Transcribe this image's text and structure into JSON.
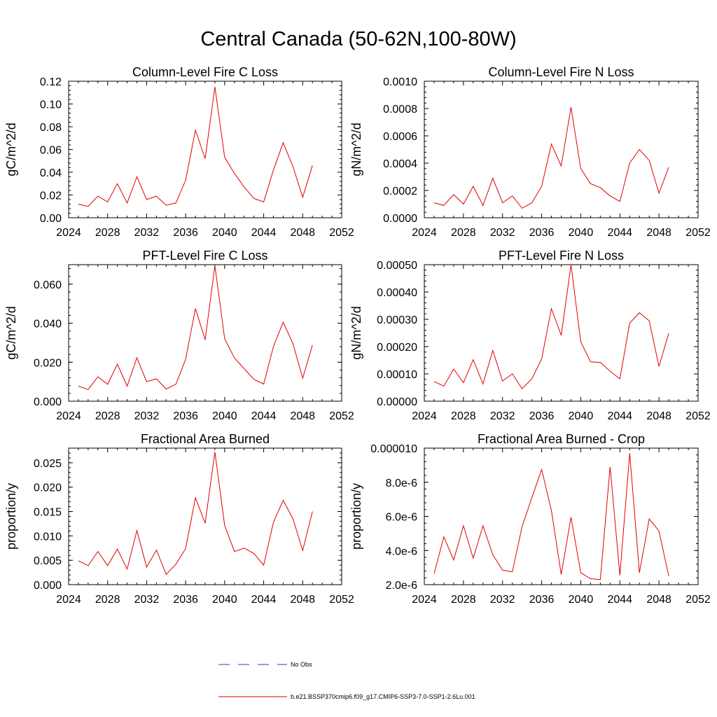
{
  "figure": {
    "title": "Central Canada (50-62N,100-80W)",
    "line_color": "#e00000",
    "obs_color": "#3a3ab0"
  },
  "legend": [
    {
      "label": "No Obs",
      "style": "dashed",
      "color": "#3a3ab0"
    },
    {
      "label": "b.e21.BSSP370cmip6.f09_g17.CMIP6-SSP3-7.0-SSP1-2.6Lu.001",
      "style": "solid",
      "color": "#e00000"
    }
  ],
  "chart_data": [
    {
      "type": "line",
      "title": "Column-Level Fire C Loss",
      "ylabel": "gC/m^2/d",
      "xlim": [
        2024,
        2052
      ],
      "xticks": [
        "2024",
        "2028",
        "2032",
        "2036",
        "2040",
        "2044",
        "2048",
        "2052"
      ],
      "ylim": [
        0,
        0.12
      ],
      "yticks": [
        "0.00",
        "0.02",
        "0.04",
        "0.06",
        "0.08",
        "0.10",
        "0.12"
      ],
      "x": [
        2025,
        2026,
        2027,
        2028,
        2029,
        2030,
        2031,
        2032,
        2033,
        2034,
        2035,
        2036,
        2037,
        2038,
        2039,
        2040,
        2041,
        2042,
        2043,
        2044,
        2045,
        2046,
        2047,
        2048,
        2049
      ],
      "values": [
        0.012,
        0.01,
        0.019,
        0.014,
        0.03,
        0.013,
        0.036,
        0.016,
        0.019,
        0.011,
        0.013,
        0.033,
        0.077,
        0.052,
        0.115,
        0.053,
        0.039,
        0.027,
        0.017,
        0.014,
        0.042,
        0.066,
        0.045,
        0.018,
        0.046
      ]
    },
    {
      "type": "line",
      "title": "Column-Level Fire N Loss",
      "ylabel": "gN/m^2/d",
      "xlim": [
        2024,
        2052
      ],
      "xticks": [
        "2024",
        "2028",
        "2032",
        "2036",
        "2040",
        "2044",
        "2048",
        "2052"
      ],
      "ylim": [
        0,
        0.001
      ],
      "yticks": [
        "0.0000",
        "0.0002",
        "0.0004",
        "0.0006",
        "0.0008",
        "0.0010"
      ],
      "x": [
        2025,
        2026,
        2027,
        2028,
        2029,
        2030,
        2031,
        2032,
        2033,
        2034,
        2035,
        2036,
        2037,
        2038,
        2039,
        2040,
        2041,
        2042,
        2043,
        2044,
        2045,
        2046,
        2047,
        2048,
        2049
      ],
      "values": [
        0.00011,
        9e-05,
        0.00017,
        0.0001,
        0.00023,
        9e-05,
        0.00029,
        0.00011,
        0.00016,
        7e-05,
        0.00011,
        0.00023,
        0.00054,
        0.00038,
        0.00081,
        0.00036,
        0.00025,
        0.00022,
        0.00016,
        0.00012,
        0.0004,
        0.0005,
        0.00042,
        0.00018,
        0.00037
      ]
    },
    {
      "type": "line",
      "title": "PFT-Level Fire C Loss",
      "ylabel": "gC/m^2/d",
      "xlim": [
        2024,
        2052
      ],
      "xticks": [
        "2024",
        "2028",
        "2032",
        "2036",
        "2040",
        "2044",
        "2048",
        "2052"
      ],
      "ylim": [
        0,
        0.07
      ],
      "yticks": [
        "0.000",
        "0.020",
        "0.040",
        "0.060"
      ],
      "ytick_values": [
        0,
        0.02,
        0.04,
        0.06
      ],
      "x": [
        2025,
        2026,
        2027,
        2028,
        2029,
        2030,
        2031,
        2032,
        2033,
        2034,
        2035,
        2036,
        2037,
        2038,
        2039,
        2040,
        2041,
        2042,
        2043,
        2044,
        2045,
        2046,
        2047,
        2048,
        2049
      ],
      "values": [
        0.0077,
        0.006,
        0.0125,
        0.0087,
        0.019,
        0.0077,
        0.0223,
        0.01,
        0.0115,
        0.0063,
        0.0087,
        0.0215,
        0.0475,
        0.0315,
        0.0695,
        0.032,
        0.0222,
        0.0167,
        0.0112,
        0.0088,
        0.028,
        0.0405,
        0.0295,
        0.0118,
        0.0288
      ]
    },
    {
      "type": "line",
      "title": "PFT-Level Fire N Loss",
      "ylabel": "gN/m^2/d",
      "xlim": [
        2024,
        2052
      ],
      "xticks": [
        "2024",
        "2028",
        "2032",
        "2036",
        "2040",
        "2044",
        "2048",
        "2052"
      ],
      "ylim": [
        0,
        0.0005
      ],
      "yticks": [
        "0.00000",
        "0.00010",
        "0.00020",
        "0.00030",
        "0.00040",
        "0.00050"
      ],
      "x": [
        2025,
        2026,
        2027,
        2028,
        2029,
        2030,
        2031,
        2032,
        2033,
        2034,
        2035,
        2036,
        2037,
        2038,
        2039,
        2040,
        2041,
        2042,
        2043,
        2044,
        2045,
        2046,
        2047,
        2048,
        2049
      ],
      "values": [
        7.2e-05,
        5.5e-05,
        0.000118,
        6.8e-05,
        0.000152,
        6.3e-05,
        0.000186,
        7.4e-05,
        0.0001,
        4.6e-05,
        8.2e-05,
        0.000155,
        0.000339,
        0.000241,
        0.0005,
        0.000218,
        0.000144,
        0.000142,
        0.00011,
        8.2e-05,
        0.000286,
        0.000324,
        0.000294,
        0.000127,
        0.000249
      ]
    },
    {
      "type": "line",
      "title": "Fractional Area Burned",
      "ylabel": "proportion/y",
      "xlim": [
        2024,
        2052
      ],
      "xticks": [
        "2024",
        "2028",
        "2032",
        "2036",
        "2040",
        "2044",
        "2048",
        "2052"
      ],
      "ylim": [
        0,
        0.028
      ],
      "yticks": [
        "0.000",
        "0.005",
        "0.010",
        "0.015",
        "0.020",
        "0.025"
      ],
      "ytick_values": [
        0,
        0.005,
        0.01,
        0.015,
        0.02,
        0.025
      ],
      "x": [
        2025,
        2026,
        2027,
        2028,
        2029,
        2030,
        2031,
        2032,
        2033,
        2034,
        2035,
        2036,
        2037,
        2038,
        2039,
        2040,
        2041,
        2042,
        2043,
        2044,
        2045,
        2046,
        2047,
        2048,
        2049
      ],
      "values": [
        0.0049,
        0.0039,
        0.0068,
        0.0039,
        0.0073,
        0.0032,
        0.0111,
        0.0036,
        0.0071,
        0.0021,
        0.0042,
        0.0074,
        0.0178,
        0.0126,
        0.0272,
        0.0121,
        0.0068,
        0.0075,
        0.0064,
        0.004,
        0.0128,
        0.0173,
        0.0135,
        0.007,
        0.015
      ]
    },
    {
      "type": "line",
      "title": "Fractional Area Burned - Crop",
      "ylabel": "proportion/y",
      "xlim": [
        2024,
        2052
      ],
      "xticks": [
        "2024",
        "2028",
        "2032",
        "2036",
        "2040",
        "2044",
        "2048",
        "2052"
      ],
      "ylim": [
        2e-06,
        1e-05
      ],
      "yticks": [
        "2.0e-6",
        "4.0e-6",
        "6.0e-6",
        "8.0e-6",
        "0.000010"
      ],
      "x": [
        2025,
        2026,
        2027,
        2028,
        2029,
        2030,
        2031,
        2032,
        2033,
        2034,
        2035,
        2036,
        2037,
        2038,
        2039,
        2040,
        2041,
        2042,
        2043,
        2044,
        2045,
        2046,
        2047,
        2048,
        2049
      ],
      "values": [
        2.65e-06,
        4.8e-06,
        3.45e-06,
        5.45e-06,
        3.55e-06,
        5.45e-06,
        3.75e-06,
        2.85e-06,
        2.75e-06,
        5.4e-06,
        7.1e-06,
        8.75e-06,
        6.35e-06,
        2.6e-06,
        5.95e-06,
        2.7e-06,
        2.35e-06,
        2.3e-06,
        8.9e-06,
        2.55e-06,
        9.7e-06,
        2.7e-06,
        5.85e-06,
        5.15e-06,
        2.5e-06
      ]
    }
  ]
}
